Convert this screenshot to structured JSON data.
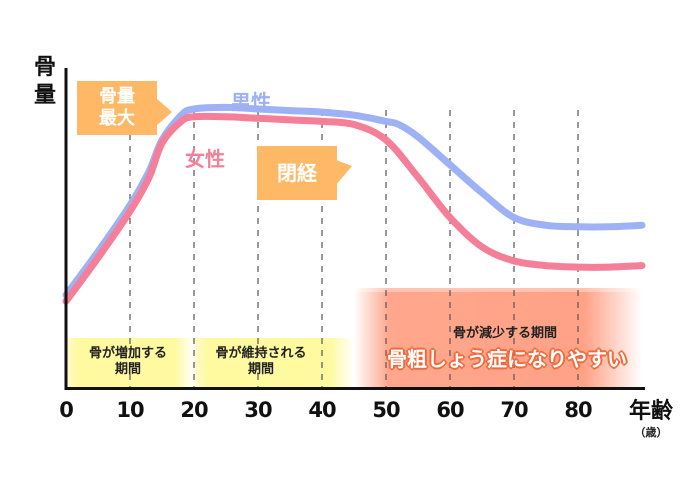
{
  "chart_data": {
    "type": "line",
    "title": "",
    "ylabel": "骨量",
    "xlabel": "年齢",
    "xunit": "（歳）",
    "xlim": [
      0,
      90
    ],
    "ylim": [
      0,
      100
    ],
    "x_ticks": [
      "0",
      "10",
      "20",
      "30",
      "40",
      "50",
      "60",
      "70",
      "80"
    ],
    "x_tick_values": [
      0,
      10,
      20,
      30,
      40,
      50,
      60,
      70,
      80
    ],
    "grid": "vertical dashed at each tick from 10 to 80",
    "series": [
      {
        "name": "男性",
        "color": "#9db1f4",
        "x": [
          0,
          5,
          10,
          13,
          15,
          18,
          20,
          25,
          30,
          35,
          40,
          45,
          50,
          52,
          55,
          60,
          65,
          70,
          75,
          80,
          85,
          90
        ],
        "values": [
          30,
          44,
          59,
          70,
          80,
          88,
          90,
          90.5,
          90,
          89.5,
          89,
          88,
          86,
          85,
          81,
          72,
          63,
          55,
          52.5,
          52,
          52,
          52.5
        ]
      },
      {
        "name": "女性",
        "color": "#f57f98",
        "x": [
          0,
          5,
          10,
          13,
          15,
          18,
          20,
          25,
          30,
          35,
          40,
          45,
          50,
          55,
          60,
          65,
          70,
          75,
          80,
          85,
          90
        ],
        "values": [
          28,
          42,
          57,
          68,
          79,
          86,
          87.5,
          87.5,
          87,
          86.5,
          86,
          85,
          80,
          68,
          55,
          45.5,
          41,
          39.5,
          39,
          39,
          39.5
        ]
      }
    ],
    "annotations": [
      {
        "text_line1": "骨量",
        "text_line2": "最大",
        "x": 18
      },
      {
        "text": "閉経",
        "x": 50
      }
    ],
    "phases": [
      {
        "label_line1": "骨が増加する",
        "label_line2": "期間",
        "range": [
          0,
          20
        ],
        "color": "#fff9a0"
      },
      {
        "label_line1": "骨が維持される",
        "label_line2": "期間",
        "range": [
          20,
          45
        ],
        "color": "#fff9a0"
      },
      {
        "label": "骨が減少する期間",
        "sublabel": "骨粗しょう症になりやすい",
        "range": [
          45,
          90
        ],
        "color": "#ff9d80"
      }
    ]
  }
}
